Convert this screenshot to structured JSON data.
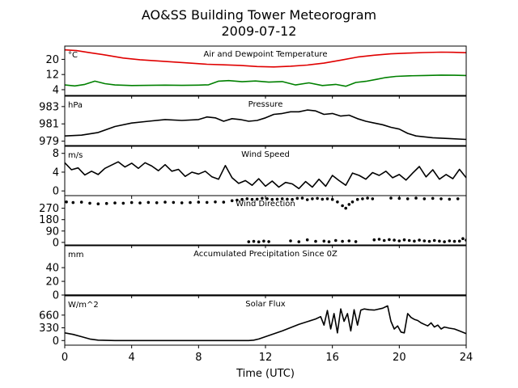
{
  "figure": {
    "title_line1": "AO&SS Building Tower Meteorogram",
    "title_line2": "2009-07-12",
    "xlabel": "Time (UTC)"
  },
  "chart_data": {
    "type": "line",
    "x_ticks": [
      0,
      4,
      8,
      12,
      16,
      20,
      24
    ],
    "xlim": [
      0,
      24
    ],
    "panels": [
      {
        "id": "temperature",
        "title": "Air and Dewpoint Temperature",
        "unit": "°C",
        "ylim": [
          1,
          27
        ],
        "y_ticks": [
          4,
          12,
          20
        ],
        "series": [
          {
            "color": "#e00000",
            "style": "line",
            "x": [
              0,
              0.7,
              1.5,
              2.5,
              3.5,
              4.5,
              5.5,
              6.5,
              7.5,
              8.5,
              9.5,
              10.5,
              11.5,
              12.5,
              13.5,
              14.5,
              15.5,
              16.5,
              17.5,
              18.5,
              19.5,
              20.5,
              21.5,
              22.5,
              23.2,
              24
            ],
            "y": [
              25,
              24.6,
              23.5,
              22.2,
              20.7,
              19.8,
              19.2,
              18.6,
              18,
              17.4,
              17.1,
              16.8,
              16.2,
              16,
              16.4,
              17,
              18,
              19.6,
              21.2,
              22.2,
              22.9,
              23.3,
              23.6,
              23.8,
              23.7,
              23.5
            ]
          },
          {
            "color": "#008000",
            "style": "line",
            "x": [
              0,
              0.6,
              1.2,
              1.8,
              2.4,
              3,
              4,
              5,
              6,
              7,
              8,
              8.6,
              9.2,
              9.8,
              10.6,
              11.4,
              12.2,
              13,
              13.8,
              14.6,
              15.4,
              16.2,
              16.8,
              17.4,
              18,
              18.6,
              19.2,
              19.8,
              20.6,
              21.5,
              22.5,
              23.3,
              24
            ],
            "y": [
              6.5,
              6,
              6.8,
              8.5,
              7.2,
              6.5,
              6.2,
              6.3,
              6.4,
              6.3,
              6.4,
              6.6,
              8.5,
              8.8,
              8.2,
              8.6,
              8,
              8.3,
              6.5,
              7.6,
              6.2,
              6.8,
              5.8,
              7.8,
              8.4,
              9.4,
              10.4,
              11,
              11.3,
              11.5,
              11.7,
              11.6,
              11.5
            ]
          }
        ]
      },
      {
        "id": "pressure",
        "title": "Pressure",
        "unit": "hPa",
        "ylim": [
          978.5,
          984.2
        ],
        "y_ticks": [
          979,
          981,
          983
        ],
        "series": [
          {
            "color": "#000000",
            "style": "line",
            "x": [
              0,
              1,
              2,
              3,
              4,
              5,
              6,
              7,
              8,
              8.5,
              9,
              9.5,
              10,
              10.5,
              11,
              11.5,
              12,
              12.5,
              13,
              13.5,
              14,
              14.5,
              15,
              15.5,
              16,
              16.5,
              17,
              17.5,
              18,
              18.5,
              19,
              19.5,
              20,
              20.5,
              21,
              22,
              23,
              24
            ],
            "y": [
              979.6,
              979.7,
              980,
              980.7,
              981.1,
              981.3,
              981.5,
              981.4,
              981.5,
              981.8,
              981.7,
              981.3,
              981.6,
              981.5,
              981.3,
              981.4,
              981.7,
              982.1,
              982.2,
              982.4,
              982.4,
              982.6,
              982.5,
              982.1,
              982.2,
              981.9,
              982,
              981.6,
              981.3,
              981.1,
              980.9,
              980.6,
              980.4,
              979.9,
              979.6,
              979.4,
              979.3,
              979.2
            ]
          }
        ]
      },
      {
        "id": "wind_speed",
        "title": "Wind Speed",
        "unit": "m/s",
        "ylim": [
          -1,
          9.5
        ],
        "y_ticks": [
          0,
          4,
          8
        ],
        "series": [
          {
            "color": "#000000",
            "style": "line",
            "x": [
              0,
              0.4,
              0.8,
              1.2,
              1.6,
              2,
              2.4,
              2.8,
              3.2,
              3.6,
              4,
              4.4,
              4.8,
              5.2,
              5.6,
              6,
              6.4,
              6.8,
              7.2,
              7.6,
              8,
              8.4,
              8.8,
              9.2,
              9.6,
              10,
              10.4,
              10.8,
              11.2,
              11.6,
              12,
              12.4,
              12.8,
              13.2,
              13.6,
              14,
              14.4,
              14.8,
              15.2,
              15.6,
              16,
              16.4,
              16.8,
              17.2,
              17.6,
              18,
              18.4,
              18.8,
              19.2,
              19.6,
              20,
              20.4,
              20.8,
              21.2,
              21.6,
              22,
              22.4,
              22.8,
              23.2,
              23.6,
              24
            ],
            "y": [
              6,
              4.5,
              4.9,
              3.4,
              4.2,
              3.5,
              4.8,
              5.5,
              6.2,
              5.1,
              5.9,
              4.8,
              6,
              5.3,
              4.3,
              5.6,
              4.2,
              4.6,
              3.1,
              4,
              3.6,
              4.2,
              3,
              2.5,
              5.4,
              2.8,
              1.6,
              2.2,
              1.2,
              2.6,
              1,
              2.1,
              0.8,
              1.8,
              1.5,
              0.5,
              2,
              0.8,
              2.5,
              1,
              3.3,
              2.2,
              1.2,
              3.8,
              3.3,
              2.5,
              3.9,
              3.3,
              4.2,
              2.8,
              3.5,
              2.3,
              3.8,
              5.2,
              3,
              4.5,
              2.5,
              3.5,
              2.6,
              4.6,
              2.8
            ]
          }
        ]
      },
      {
        "id": "wind_direction",
        "title": "Wind Direction",
        "unit": "",
        "ylim": [
          -20,
          370
        ],
        "y_ticks": [
          0,
          90,
          180,
          270
        ],
        "series": [
          {
            "color": "#000000",
            "style": "scatter",
            "x": [
              0.1,
              0.5,
              1,
              1.5,
              2,
              2.5,
              3,
              3.5,
              4,
              4.5,
              5,
              5.5,
              6,
              6.5,
              7,
              7.5,
              8,
              8.5,
              9,
              9.5,
              10,
              10.3,
              10.6,
              10.9,
              11.2,
              11.5,
              11.8,
              12.1,
              12.4,
              12.7,
              13,
              13.3,
              13.6,
              13.9,
              14.2,
              14.5,
              14.8,
              15.1,
              15.4,
              15.7,
              16,
              16.3,
              16.6,
              16.8,
              17,
              17.2,
              17.5,
              17.8,
              18.1,
              18.4,
              19.5,
              20,
              20.5,
              21,
              21.5,
              22,
              22.5,
              23,
              23.5,
              11,
              11.3,
              11.6,
              11.9,
              12.2,
              13.5,
              14,
              14.5,
              15,
              15.5,
              15.8,
              16.2,
              16.6,
              17,
              17.4,
              18.5,
              18.8,
              19.1,
              19.4,
              19.7,
              20,
              20.3,
              20.6,
              20.9,
              21.2,
              21.5,
              21.8,
              22.1,
              22.4,
              22.7,
              23,
              23.3,
              23.6,
              23.8,
              24
            ],
            "y": [
              320,
              315,
              318,
              310,
              305,
              308,
              312,
              310,
              315,
              312,
              316,
              314,
              318,
              316,
              313,
              315,
              318,
              316,
              320,
              318,
              330,
              335,
              340,
              345,
              340,
              342,
              348,
              345,
              340,
              342,
              345,
              342,
              340,
              348,
              350,
              338,
              345,
              348,
              342,
              345,
              340,
              320,
              290,
              270,
              300,
              320,
              340,
              345,
              350,
              345,
              350,
              348,
              345,
              350,
              345,
              348,
              345,
              342,
              345,
              5,
              8,
              4,
              10,
              6,
              12,
              5,
              20,
              8,
              10,
              5,
              15,
              8,
              12,
              6,
              20,
              25,
              15,
              22,
              18,
              12,
              20,
              15,
              10,
              18,
              12,
              8,
              15,
              10,
              5,
              12,
              8,
              10,
              30,
              18
            ]
          }
        ]
      },
      {
        "id": "precipitation",
        "title": "Accumulated Precipitation Since 0Z",
        "unit": "mm",
        "ylim": [
          0,
          72
        ],
        "y_ticks": [
          0,
          20,
          40
        ],
        "series": [
          {
            "color": "#000000",
            "style": "line",
            "x": [
              0,
              24
            ],
            "y": [
              0,
              0
            ]
          }
        ]
      },
      {
        "id": "solar_flux",
        "title": "Solar Flux",
        "unit": "W/m^2",
        "ylim": [
          -120,
          1160
        ],
        "y_ticks": [
          0,
          330,
          660
        ],
        "series": [
          {
            "color": "#000000",
            "style": "line",
            "x": [
              0,
              0.5,
              1,
              1.5,
              2,
              3,
              5,
              7,
              9,
              10,
              11,
              11.3,
              11.6,
              12,
              13,
              14,
              15,
              15.3,
              15.5,
              15.7,
              15.9,
              16.1,
              16.3,
              16.5,
              16.7,
              16.9,
              17.1,
              17.3,
              17.5,
              17.7,
              17.9,
              18.2,
              18.5,
              19,
              19.3,
              19.5,
              19.7,
              19.9,
              20.1,
              20.3,
              20.5,
              20.7,
              20.9,
              21.1,
              21.3,
              21.5,
              21.7,
              21.9,
              22.1,
              22.3,
              22.5,
              22.7,
              23,
              23.3,
              23.6,
              24
            ],
            "y": [
              200,
              160,
              100,
              40,
              10,
              0,
              0,
              0,
              0,
              0,
              0,
              10,
              40,
              100,
              250,
              420,
              560,
              620,
              400,
              780,
              300,
              700,
              200,
              820,
              500,
              700,
              250,
              800,
              400,
              790,
              820,
              800,
              790,
              840,
              900,
              500,
              300,
              380,
              220,
              200,
              700,
              600,
              550,
              520,
              460,
              420,
              380,
              460,
              350,
              400,
              300,
              350,
              320,
              300,
              250,
              180
            ]
          }
        ]
      }
    ]
  }
}
